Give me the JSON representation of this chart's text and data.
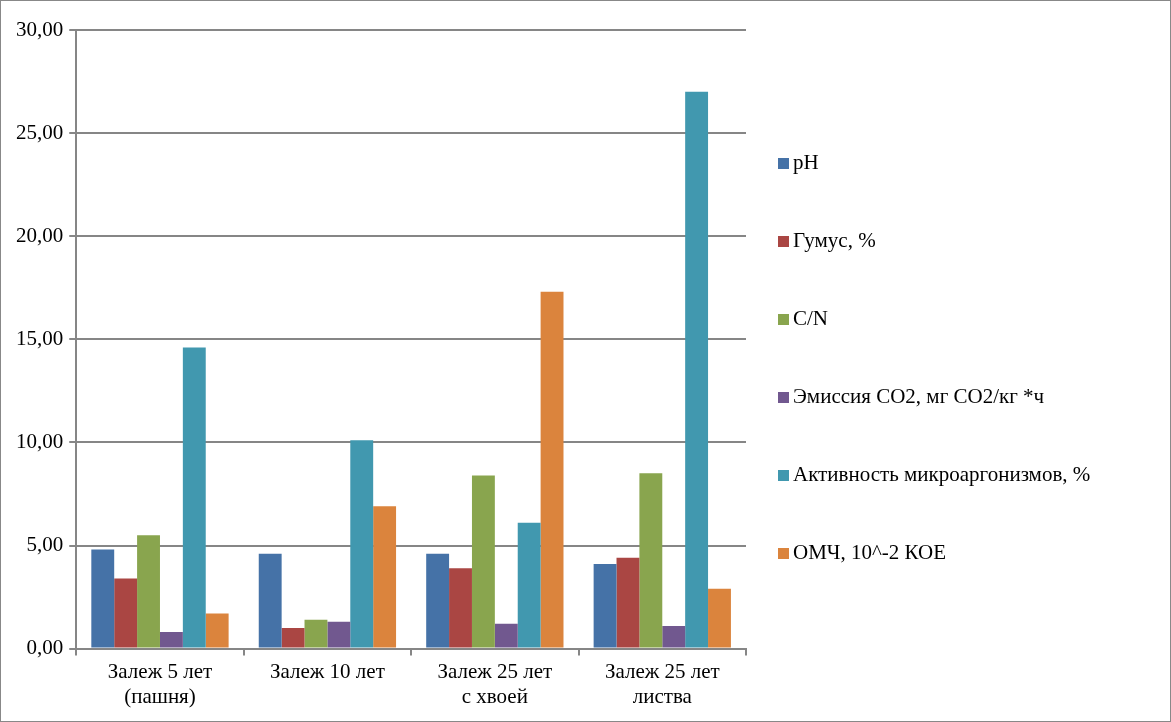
{
  "chart_data": {
    "type": "bar",
    "categories": [
      "Залеж 5 лет (пашня)",
      "Залеж 10 лет",
      "Залеж 25 лет с хвоей",
      "Залеж 25 лет листва"
    ],
    "series": [
      {
        "name": "pH",
        "color": "#4572a7",
        "values": [
          4.8,
          4.6,
          4.6,
          4.1
        ]
      },
      {
        "name": "Гумус, %",
        "color": "#aa4643",
        "values": [
          3.4,
          1.0,
          3.9,
          4.4
        ]
      },
      {
        "name": "C/N",
        "color": "#89a54e",
        "values": [
          5.5,
          1.4,
          8.4,
          8.5
        ]
      },
      {
        "name": "Эмиссия CO2, мг CO2/кг *ч",
        "color": "#71588f",
        "values": [
          0.8,
          1.3,
          1.2,
          1.1
        ]
      },
      {
        "name": "Активность микроаргонизмов, %",
        "color": "#4198af",
        "values": [
          14.6,
          10.1,
          6.1,
          27.0
        ]
      },
      {
        "name": "ОМЧ, 10^-2 КОЕ",
        "color": "#db843d",
        "values": [
          1.7,
          6.9,
          17.3,
          2.9
        ]
      }
    ],
    "ylim": [
      0,
      30
    ],
    "yticks": [
      {
        "value": 0,
        "label": "0,00"
      },
      {
        "value": 5,
        "label": "5,00"
      },
      {
        "value": 10,
        "label": "10,00"
      },
      {
        "value": 15,
        "label": "15,00"
      },
      {
        "value": 20,
        "label": "20,00"
      },
      {
        "value": 25,
        "label": "25,00"
      },
      {
        "value": 30,
        "label": "30,00"
      }
    ],
    "grid": "y",
    "legend": "right"
  }
}
